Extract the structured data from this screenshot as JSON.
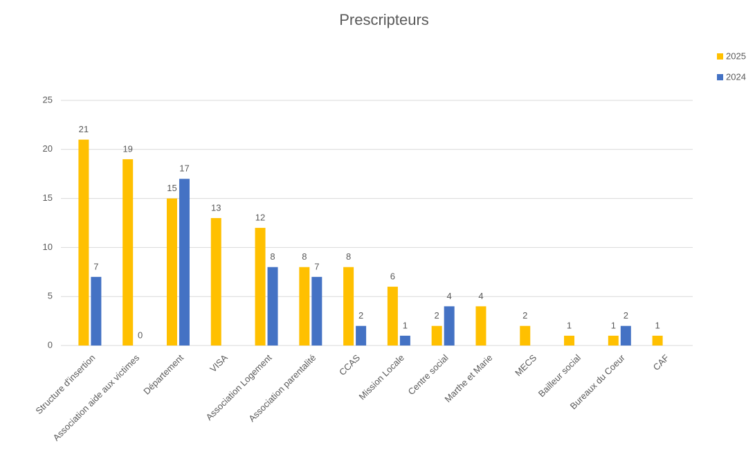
{
  "chart_data": {
    "type": "bar",
    "title": "Prescripteurs",
    "categories": [
      "Structure d'insertion",
      "Association aide aux victimes",
      "Département",
      "VISA",
      "Association Logement",
      "Association parentalité",
      "CCAS",
      "Mission Locale",
      "Centre social",
      "Marthe et Marie",
      "MECS",
      "Bailleur social",
      "Bureaux du Coeur",
      "CAF"
    ],
    "series": [
      {
        "name": "2025",
        "color": "#ffc000",
        "values": [
          21,
          19,
          15,
          13,
          12,
          8,
          8,
          6,
          2,
          4,
          2,
          1,
          1,
          1
        ]
      },
      {
        "name": "2024",
        "color": "#4472c4",
        "values": [
          7,
          0,
          17,
          null,
          8,
          7,
          2,
          1,
          4,
          null,
          null,
          null,
          2,
          null
        ]
      }
    ],
    "ylim": [
      0,
      25
    ],
    "yticks": [
      0,
      5,
      10,
      15,
      20,
      25
    ],
    "grid": true,
    "legend": "top-right"
  }
}
